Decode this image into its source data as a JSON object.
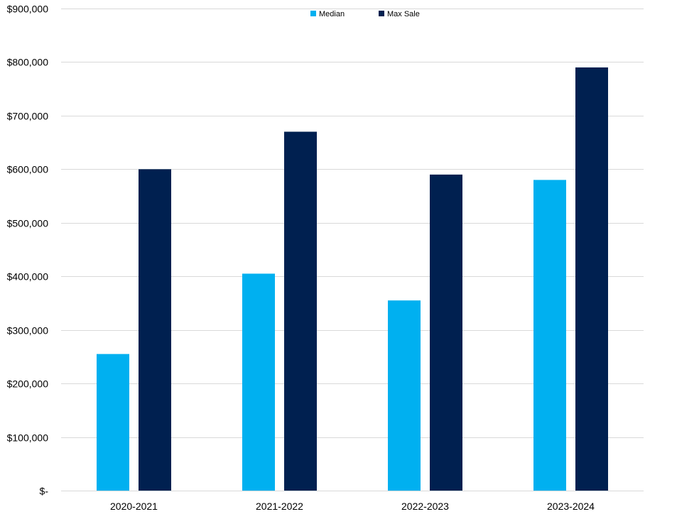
{
  "chart_data": {
    "type": "bar",
    "title": "",
    "xlabel": "",
    "ylabel": "",
    "categories": [
      "2020-2021",
      "2021-2022",
      "2022-2023",
      "2023-2024"
    ],
    "series": [
      {
        "name": "Median",
        "color": "#00B0F0",
        "values": [
          255000,
          405000,
          355000,
          580000
        ]
      },
      {
        "name": "Max Sale",
        "color": "#002050",
        "values": [
          600000,
          670000,
          590000,
          790000
        ]
      }
    ],
    "ylim": [
      0,
      900000
    ],
    "yticks": [
      0,
      100000,
      200000,
      300000,
      400000,
      500000,
      600000,
      700000,
      800000,
      900000
    ],
    "ytick_labels": [
      "$-",
      "$100,000",
      "$200,000",
      "$300,000",
      "$400,000",
      "$500,000",
      "$600,000",
      "$700,000",
      "$800,000",
      "$900,000"
    ],
    "grid": true,
    "legend_position": "top-center",
    "gridline_color": "#D9D9D9"
  }
}
